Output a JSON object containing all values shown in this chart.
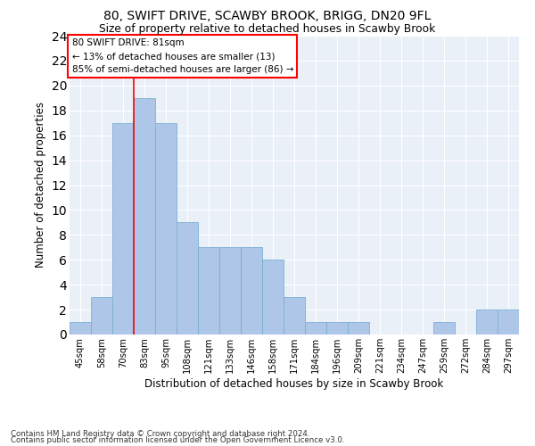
{
  "title1": "80, SWIFT DRIVE, SCAWBY BROOK, BRIGG, DN20 9FL",
  "title2": "Size of property relative to detached houses in Scawby Brook",
  "xlabel": "Distribution of detached houses by size in Scawby Brook",
  "ylabel": "Number of detached properties",
  "bins": [
    "45sqm",
    "58sqm",
    "70sqm",
    "83sqm",
    "95sqm",
    "108sqm",
    "121sqm",
    "133sqm",
    "146sqm",
    "158sqm",
    "171sqm",
    "184sqm",
    "196sqm",
    "209sqm",
    "221sqm",
    "234sqm",
    "247sqm",
    "259sqm",
    "272sqm",
    "284sqm",
    "297sqm"
  ],
  "values": [
    1,
    3,
    17,
    19,
    17,
    9,
    7,
    7,
    7,
    6,
    3,
    1,
    1,
    1,
    0,
    0,
    0,
    1,
    0,
    2,
    2
  ],
  "bar_color": "#aec6e8",
  "bar_edge_color": "#7bafd4",
  "vline_x": 2.5,
  "vline_color": "red",
  "annotation_text": "80 SWIFT DRIVE: 81sqm\n← 13% of detached houses are smaller (13)\n85% of semi-detached houses are larger (86) →",
  "annotation_box_color": "white",
  "annotation_box_edge": "red",
  "ylim": [
    0,
    24
  ],
  "yticks": [
    0,
    2,
    4,
    6,
    8,
    10,
    12,
    14,
    16,
    18,
    20,
    22,
    24
  ],
  "background_color": "#eaf0f8",
  "footer1": "Contains HM Land Registry data © Crown copyright and database right 2024.",
  "footer2": "Contains public sector information licensed under the Open Government Licence v3.0."
}
